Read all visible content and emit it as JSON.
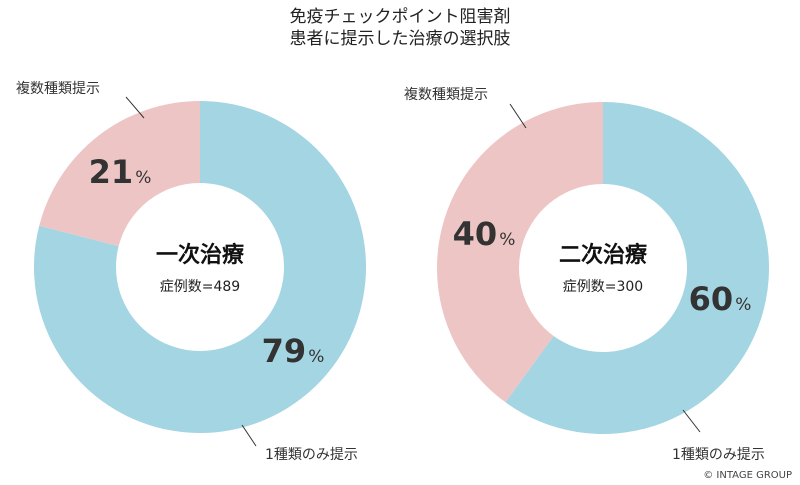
{
  "title_lines": [
    "免疫チェックポイント阻害剤",
    "患者に提示した治療の選択肢"
  ],
  "copyright": "© INTAGE GROUP",
  "colors": {
    "single": "#A3D5E2",
    "multiple": "#EEC5C5",
    "value_text": "#333333",
    "label_text": "#333333"
  },
  "chart_data": [
    {
      "type": "pie",
      "center_title": "一次治療",
      "center_sub": "症例数=489",
      "n": 489,
      "slices": [
        {
          "label": "1種類のみ提示",
          "value": 79,
          "display": "79"
        },
        {
          "label": "複数種類提示",
          "value": 21,
          "display": "21"
        }
      ],
      "unit": "%"
    },
    {
      "type": "pie",
      "center_title": "二次治療",
      "center_sub": "症例数=300",
      "n": 300,
      "slices": [
        {
          "label": "1種類のみ提示",
          "value": 60,
          "display": "60"
        },
        {
          "label": "複数種類提示",
          "value": 40,
          "display": "40"
        }
      ],
      "unit": "%"
    }
  ]
}
